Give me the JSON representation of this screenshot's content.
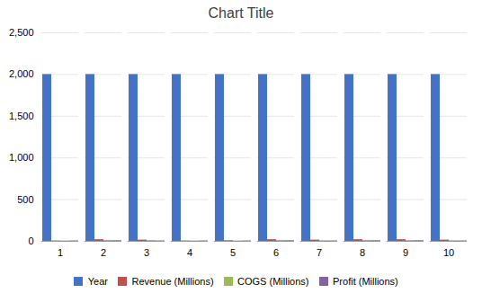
{
  "chart_data": {
    "type": "bar",
    "title": "Chart Title",
    "categories": [
      "1",
      "2",
      "3",
      "4",
      "5",
      "6",
      "7",
      "8",
      "9",
      "10"
    ],
    "series": [
      {
        "name": "Year",
        "color": "#4472C4",
        "values": [
          2000,
          2000,
          2000,
          2000,
          2000,
          2000,
          2000,
          2000,
          2000,
          2000
        ]
      },
      {
        "name": "Revenue (Millions)",
        "color": "#C0504D",
        "values": [
          5,
          20,
          15,
          5,
          8,
          20,
          15,
          20,
          20,
          15
        ]
      },
      {
        "name": "COGS (Millions)",
        "color": "#9BBB59",
        "values": [
          5,
          12,
          10,
          5,
          5,
          12,
          8,
          12,
          10,
          8
        ]
      },
      {
        "name": "Profit (Millions)",
        "color": "#8064A2",
        "values": [
          5,
          8,
          5,
          5,
          5,
          8,
          5,
          8,
          8,
          5
        ]
      }
    ],
    "ylim": [
      0,
      2500
    ],
    "yticks": [
      0,
      500,
      1000,
      1500,
      2000,
      2500
    ],
    "grid": true,
    "legend": "bottom"
  }
}
